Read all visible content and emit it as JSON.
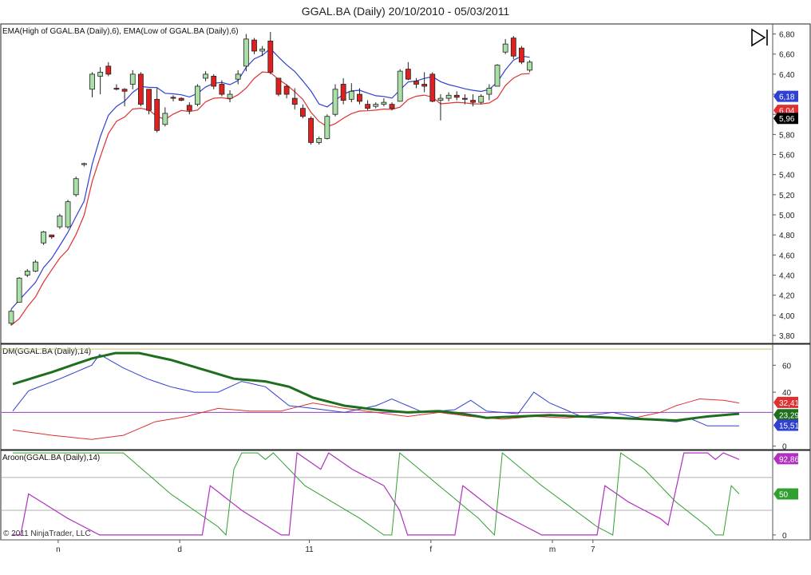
{
  "title": "GGAL.BA (Daily)  20/10/2010 - 05/03/2011",
  "copyright": "© 2011 NinjaTrader, LLC",
  "colors": {
    "up": "#a8e0a8",
    "down": "#e02020",
    "ema_high": "#3040d0",
    "ema_low": "#e03030",
    "dm_adx": "#1e6e1e",
    "dm_plus": "#3040d0",
    "dm_minus": "#e03030",
    "aroon_up": "#b030c0",
    "aroon_down": "#30a030"
  },
  "chart_data": [
    {
      "type": "candlestick",
      "panel": "price",
      "label": "EMA(High of GGAL.BA (Daily),6), EMA(Low of GGAL.BA (Daily),6)",
      "ylim": [
        3.72,
        6.9
      ],
      "yticks": [
        "6,80",
        "6,60",
        "6,40",
        "6,20",
        "6,00",
        "5,80",
        "5,60",
        "5,40",
        "5,20",
        "5,00",
        "4,80",
        "4,60",
        "4,40",
        "4,20",
        "4,00",
        "3,80"
      ],
      "xticks": [
        {
          "label": "n",
          "i": 6
        },
        {
          "label": "d",
          "i": 21
        },
        {
          "label": "11",
          "i": 37
        },
        {
          "label": "f",
          "i": 52
        },
        {
          "label": "m",
          "i": 67
        },
        {
          "label": "7",
          "i": 72
        }
      ],
      "candles": [
        [
          3.92,
          4.06,
          3.9,
          4.04
        ],
        [
          4.13,
          4.38,
          4.13,
          4.37
        ],
        [
          4.4,
          4.46,
          4.38,
          4.44
        ],
        [
          4.44,
          4.55,
          4.43,
          4.53
        ],
        [
          4.72,
          4.84,
          4.7,
          4.83
        ],
        [
          4.8,
          4.8,
          4.76,
          4.78
        ],
        [
          4.88,
          5.01,
          4.86,
          4.99
        ],
        [
          4.88,
          5.15,
          4.86,
          5.13
        ],
        [
          5.2,
          5.38,
          5.18,
          5.36
        ],
        [
          5.5,
          5.52,
          5.48,
          5.51
        ],
        [
          6.25,
          6.42,
          6.17,
          6.4
        ],
        [
          6.38,
          6.47,
          6.2,
          6.42
        ],
        [
          6.48,
          6.52,
          6.38,
          6.4
        ],
        [
          6.26,
          6.3,
          6.24,
          6.25
        ],
        [
          6.25,
          6.26,
          6.08,
          6.23
        ],
        [
          6.3,
          6.44,
          6.25,
          6.4
        ],
        [
          6.4,
          6.42,
          6.08,
          6.1
        ],
        [
          6.25,
          6.25,
          6.0,
          6.04
        ],
        [
          6.15,
          6.26,
          5.82,
          5.84
        ],
        [
          5.9,
          6.07,
          5.88,
          6.01
        ],
        [
          6.17,
          6.19,
          6.13,
          6.16
        ],
        [
          6.16,
          6.17,
          6.13,
          6.14
        ],
        [
          6.09,
          6.12,
          6.0,
          6.04
        ],
        [
          6.1,
          6.3,
          6.08,
          6.28
        ],
        [
          6.36,
          6.43,
          6.33,
          6.4
        ],
        [
          6.38,
          6.4,
          6.25,
          6.28
        ],
        [
          6.3,
          6.34,
          6.18,
          6.2
        ],
        [
          6.16,
          6.24,
          6.12,
          6.2
        ],
        [
          6.35,
          6.44,
          6.3,
          6.4
        ],
        [
          6.48,
          6.8,
          6.43,
          6.75
        ],
        [
          6.74,
          6.76,
          6.6,
          6.63
        ],
        [
          6.63,
          6.68,
          6.58,
          6.65
        ],
        [
          6.73,
          6.82,
          6.4,
          6.42
        ],
        [
          6.36,
          6.36,
          6.18,
          6.2
        ],
        [
          6.28,
          6.3,
          6.16,
          6.2
        ],
        [
          6.16,
          6.26,
          6.05,
          6.1
        ],
        [
          6.06,
          6.1,
          5.96,
          5.98
        ],
        [
          5.96,
          5.98,
          5.7,
          5.72
        ],
        [
          5.72,
          5.78,
          5.7,
          5.76
        ],
        [
          5.76,
          6.0,
          5.75,
          5.98
        ],
        [
          6.0,
          6.3,
          5.98,
          6.25
        ],
        [
          6.3,
          6.36,
          6.1,
          6.14
        ],
        [
          6.15,
          6.31,
          6.12,
          6.23
        ],
        [
          6.2,
          6.26,
          6.1,
          6.13
        ],
        [
          6.1,
          6.14,
          6.04,
          6.06
        ],
        [
          6.08,
          6.12,
          6.06,
          6.1
        ],
        [
          6.1,
          6.16,
          6.08,
          6.12
        ],
        [
          6.1,
          6.12,
          6.04,
          6.06
        ],
        [
          6.13,
          6.45,
          6.13,
          6.43
        ],
        [
          6.45,
          6.52,
          6.34,
          6.35
        ],
        [
          6.33,
          6.36,
          6.26,
          6.3
        ],
        [
          6.3,
          6.42,
          6.22,
          6.28
        ],
        [
          6.4,
          6.42,
          6.12,
          6.13
        ],
        [
          6.14,
          6.2,
          5.94,
          6.16
        ],
        [
          6.16,
          6.22,
          6.13,
          6.19
        ],
        [
          6.19,
          6.23,
          6.14,
          6.17
        ],
        [
          6.16,
          6.2,
          6.1,
          6.15
        ],
        [
          6.14,
          6.2,
          6.08,
          6.12
        ],
        [
          6.12,
          6.2,
          6.1,
          6.18
        ],
        [
          6.2,
          6.3,
          6.14,
          6.26
        ],
        [
          6.28,
          6.5,
          6.28,
          6.49
        ],
        [
          6.62,
          6.75,
          6.6,
          6.7
        ],
        [
          6.76,
          6.78,
          6.55,
          6.58
        ],
        [
          6.66,
          6.68,
          6.5,
          6.52
        ],
        [
          6.44,
          6.54,
          6.42,
          6.52
        ]
      ],
      "ema_high": [],
      "ema_low": [],
      "last_labels": [
        {
          "text": "6,18",
          "v": 6.18,
          "color": "#3040d0"
        },
        {
          "text": "6,04",
          "v": 6.04,
          "color": "#e03030"
        },
        {
          "text": "5,96",
          "v": 5.96,
          "color": "#000000"
        }
      ]
    },
    {
      "type": "line",
      "panel": "dm",
      "label": "DM(GGAL.BA (Daily),14)",
      "ylim": [
        -2,
        75
      ],
      "yticks": [
        {
          "label": "60",
          "v": 60
        },
        {
          "label": "40",
          "v": 40
        },
        {
          "label": "0",
          "v": 0
        }
      ],
      "hlines": [
        {
          "v": 72,
          "color": "#c8c070"
        },
        {
          "v": 25,
          "color": "#9040c0"
        }
      ],
      "last_labels": [
        {
          "text": "32,41",
          "v": 32.41,
          "color": "#e03030"
        },
        {
          "text": "23,29",
          "v": 23.29,
          "color": "#1e6e1e"
        },
        {
          "text": "15,51",
          "v": 15.51,
          "color": "#3040d0"
        }
      ]
    },
    {
      "type": "line",
      "panel": "aroon",
      "label": "Aroon(GGAL.BA (Daily),14)",
      "ylim": [
        -5,
        102
      ],
      "yticks": [
        {
          "label": "0",
          "v": 0
        }
      ],
      "hlines": [
        {
          "v": 70,
          "color": "#b0b0b0"
        },
        {
          "v": 30,
          "color": "#b0b0b0"
        }
      ],
      "last_labels": [
        {
          "text": "92,86",
          "v": 92.86,
          "color": "#b030c0"
        },
        {
          "text": "50",
          "v": 50,
          "color": "#30a030"
        }
      ]
    }
  ]
}
